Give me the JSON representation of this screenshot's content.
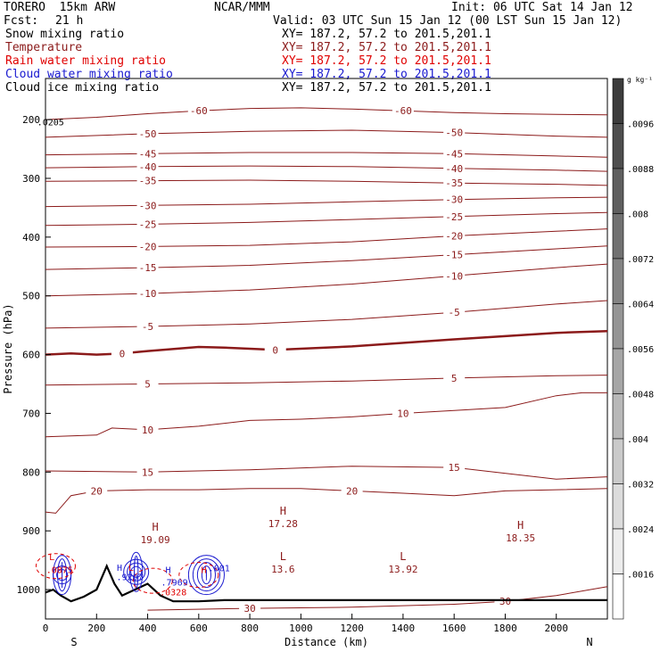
{
  "header": {
    "model": "TORERO  15km ARW",
    "org": "NCAR/MMM",
    "init": "Init: 06 UTC Sat 14 Jan 12",
    "fcst_label": "Fcst:",
    "fcst_value": "21 h",
    "valid": "Valid: 03 UTC Sun 15 Jan 12 (00 LST Sun 15 Jan 12)"
  },
  "fields": [
    {
      "name": "Snow mixing ratio",
      "xy": "XY= 187.2, 57.2 to 201.5,201.1",
      "color": "#000000"
    },
    {
      "name": "Temperature",
      "xy": "XY= 187.2, 57.2 to 201.5,201.1",
      "color": "#8b1a1a"
    },
    {
      "name": "Rain water mixing ratio",
      "xy": "XY= 187.2, 57.2 to 201.5,201.1",
      "color": "#e00000"
    },
    {
      "name": "Cloud water mixing ratio",
      "xy": "XY= 187.2, 57.2 to 201.5,201.1",
      "color": "#1a1ad0"
    },
    {
      "name": "Cloud ice mixing ratio",
      "xy": "XY= 187.2, 57.2 to 201.5,201.1",
      "color": "#000000"
    }
  ],
  "colors": {
    "temperature": "#8b1a1a",
    "rain": "#e00000",
    "cloud_water": "#1a1ad0",
    "terrain": "#000000"
  },
  "chart_data": {
    "type": "cross-section",
    "xlabel": "Distance (km)",
    "ylabel": "Pressure (hPa)",
    "xlim": [
      0,
      2200
    ],
    "ylim": [
      1050,
      130
    ],
    "x_ticks": [
      0,
      200,
      400,
      600,
      800,
      1000,
      1200,
      1400,
      1600,
      1800,
      2000
    ],
    "y_ticks": [
      200,
      300,
      400,
      500,
      600,
      700,
      800,
      900,
      1000
    ],
    "left_end_label": "S",
    "right_end_label": "N",
    "colorbar": {
      "unit": "g kg⁻¹",
      "labels": [
        ".0096",
        ".0088",
        ".008",
        ".0072",
        ".0064",
        ".0056",
        ".0048",
        ".004",
        ".0032",
        ".0024",
        ".0016"
      ]
    },
    "isotherms": [
      {
        "value": -60,
        "x": [
          0,
          200,
          400,
          600,
          800,
          1000,
          1200,
          1400,
          1600,
          1800,
          2000,
          2200
        ],
        "p": [
          200,
          196,
          190,
          185,
          181,
          180,
          182,
          185,
          188,
          190,
          191,
          192
        ]
      },
      {
        "value": -50,
        "x": [
          0,
          400,
          800,
          1200,
          1600,
          2000,
          2200
        ],
        "p": [
          230,
          224,
          220,
          218,
          222,
          228,
          230
        ]
      },
      {
        "value": -45,
        "x": [
          0,
          400,
          800,
          1200,
          1600,
          2000,
          2200
        ],
        "p": [
          260,
          258,
          256,
          256,
          258,
          262,
          264
        ]
      },
      {
        "value": -40,
        "x": [
          0,
          400,
          800,
          1200,
          1600,
          2000,
          2200
        ],
        "p": [
          282,
          280,
          279,
          280,
          283,
          286,
          288
        ]
      },
      {
        "value": -35,
        "x": [
          0,
          400,
          800,
          1200,
          1600,
          2000,
          2200
        ],
        "p": [
          305,
          304,
          303,
          305,
          308,
          310,
          312
        ]
      },
      {
        "value": -30,
        "x": [
          0,
          400,
          800,
          1200,
          1600,
          2000,
          2200
        ],
        "p": [
          348,
          346,
          344,
          340,
          336,
          333,
          332
        ]
      },
      {
        "value": -25,
        "x": [
          0,
          400,
          800,
          1200,
          1600,
          2000,
          2200
        ],
        "p": [
          380,
          378,
          375,
          370,
          365,
          360,
          358
        ]
      },
      {
        "value": -20,
        "x": [
          0,
          400,
          800,
          1200,
          1600,
          2000,
          2200
        ],
        "p": [
          417,
          416,
          414,
          408,
          398,
          390,
          386
        ]
      },
      {
        "value": -15,
        "x": [
          0,
          400,
          800,
          1200,
          1600,
          2000,
          2200
        ],
        "p": [
          455,
          452,
          448,
          440,
          430,
          420,
          415
        ]
      },
      {
        "value": -10,
        "x": [
          0,
          400,
          800,
          1200,
          1600,
          2000,
          2200
        ],
        "p": [
          500,
          496,
          490,
          480,
          466,
          452,
          446
        ]
      },
      {
        "value": -5,
        "x": [
          0,
          400,
          800,
          1200,
          1600,
          2000,
          2200
        ],
        "p": [
          555,
          552,
          548,
          540,
          528,
          514,
          508
        ]
      },
      {
        "value": 0,
        "bold": true,
        "x": [
          0,
          100,
          200,
          300,
          400,
          600,
          700,
          900,
          1200,
          1600,
          2000,
          2200
        ],
        "p": [
          600,
          598,
          600,
          598,
          594,
          587,
          588,
          592,
          586,
          574,
          563,
          560
        ]
      },
      {
        "value": 5,
        "x": [
          0,
          400,
          800,
          1200,
          1600,
          2000,
          2200
        ],
        "p": [
          652,
          650,
          648,
          645,
          640,
          636,
          635
        ]
      },
      {
        "value": 10,
        "x": [
          0,
          200,
          260,
          400,
          600,
          800,
          1000,
          1200,
          1400,
          1600,
          1800,
          2000,
          2100,
          2200
        ],
        "p": [
          740,
          737,
          725,
          728,
          722,
          712,
          710,
          706,
          700,
          695,
          690,
          670,
          665,
          665
        ]
      },
      {
        "value": 15,
        "x": [
          0,
          400,
          800,
          1200,
          1600,
          2000,
          2200
        ],
        "p": [
          798,
          800,
          796,
          790,
          792,
          812,
          808
        ]
      },
      {
        "value": 20,
        "x": [
          0,
          40,
          100,
          200,
          400,
          600,
          800,
          1000,
          1200,
          1400,
          1600,
          1800,
          2000,
          2200
        ],
        "p": [
          868,
          870,
          840,
          832,
          830,
          830,
          828,
          828,
          832,
          836,
          840,
          832,
          830,
          828
        ]
      },
      {
        "value": 30,
        "x": [
          400,
          800,
          1200,
          1600,
          1800,
          2000,
          2200
        ],
        "p": [
          1035,
          1032,
          1030,
          1025,
          1020,
          1010,
          995
        ]
      }
    ],
    "markers": [
      {
        "type": "H",
        "x": 430,
        "p": 900,
        "value": "19.09"
      },
      {
        "type": "H",
        "x": 930,
        "p": 872,
        "value": "17.28"
      },
      {
        "type": "L",
        "x": 930,
        "p": 950,
        "value": "13.6"
      },
      {
        "type": "L",
        "x": 1400,
        "p": 950,
        "value": "13.92"
      },
      {
        "type": "H",
        "x": 1860,
        "p": 897,
        "value": "18.35"
      }
    ],
    "low_level_labels": [
      {
        "text": "L",
        "x": 25,
        "p": 950,
        "color": "#e00000"
      },
      {
        "text": ".0875",
        "x": 55,
        "p": 972,
        "color": "#e00000"
      },
      {
        "text": "H",
        "x": 290,
        "p": 968,
        "color": "#1a1ad0"
      },
      {
        "text": "L",
        "x": 335,
        "p": 968,
        "color": "#e00000"
      },
      {
        "text": ".9207",
        "x": 330,
        "p": 984,
        "color": "#1a1ad0"
      },
      {
        "text": "H",
        "x": 480,
        "p": 972,
        "color": "#1a1ad0"
      },
      {
        "text": ".7969",
        "x": 505,
        "p": 993,
        "color": "#1a1ad0"
      },
      {
        "text": ".001",
        "x": 680,
        "p": 969,
        "color": "#1a1ad0"
      },
      {
        "text": "H",
        "x": 620,
        "p": 972,
        "color": "#e00000"
      },
      {
        "text": ".0328",
        "x": 500,
        "p": 1010,
        "color": "#e00000"
      }
    ],
    "upper_annotation": ".0205"
  }
}
